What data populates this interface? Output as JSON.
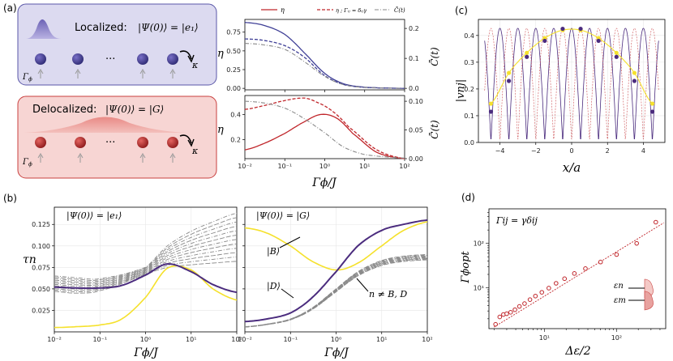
{
  "panel_labels": {
    "a": "(a)",
    "b": "(b)",
    "c": "(c)",
    "d": "(d)"
  },
  "schematic": {
    "localized": {
      "title": "Localized:",
      "state": "|Ψ(0)⟩ = |e₁⟩",
      "dots": "···",
      "gamma": "Γ",
      "gamma_sub": "ϕ",
      "kappa": "κ"
    },
    "delocalized": {
      "title": "Delocalized:",
      "state": "|Ψ(0)⟩ = |G⟩",
      "dots": "···",
      "gamma": "Γ",
      "gamma_sub": "ϕ",
      "kappa": "κ"
    }
  },
  "colors": {
    "purple": "#4b2c7e",
    "navy": "#3f3f96",
    "red": "#c0262b",
    "gray": "#8a8a8a",
    "yellow": "#f5e12c",
    "pink": "#f4c9c6",
    "lavender": "#d9d7ee"
  },
  "chart_data": [
    {
      "id": "a-top",
      "type": "line",
      "legend": [
        "η",
        "η ; Γᵢⱼ = δᵢⱼγ",
        "C̄(t)"
      ],
      "ylabel": "η",
      "y2label": "C̄(t)",
      "yticks": [
        "0.00",
        "0.25",
        "0.50",
        "0.75"
      ],
      "y2ticks": [
        "0.0",
        "0.1",
        "0.2"
      ],
      "xlim": [
        0.01,
        100
      ],
      "ylim": [
        -0.02,
        0.92
      ],
      "y2lim": [
        -0.005,
        0.23
      ],
      "series": [
        {
          "name": "η",
          "x": [
            0.01,
            0.03,
            0.1,
            0.3,
            1,
            3,
            10,
            100
          ],
          "y": [
            0.88,
            0.84,
            0.72,
            0.48,
            0.2,
            0.06,
            0.015,
            0.0
          ]
        },
        {
          "name": "η ; Γᵢⱼ = δᵢⱼγ",
          "x": [
            0.01,
            0.03,
            0.1,
            0.3,
            1,
            3,
            10,
            100
          ],
          "y": [
            0.66,
            0.64,
            0.57,
            0.42,
            0.17,
            0.05,
            0.012,
            0.0
          ]
        },
        {
          "name": "C̄(t)",
          "x": [
            0.01,
            0.03,
            0.1,
            0.3,
            1,
            3,
            10,
            100
          ],
          "y": [
            0.15,
            0.145,
            0.13,
            0.09,
            0.04,
            0.012,
            0.003,
            0.0
          ]
        }
      ]
    },
    {
      "id": "a-bottom",
      "type": "line",
      "xlabel": "Γϕ/J",
      "ylabel": "η",
      "y2label": "C̄(t)",
      "yticks": [
        "0.2",
        "0.4"
      ],
      "y2ticks": [
        "0.00",
        "0.05",
        "0.10"
      ],
      "xticks": [
        "10⁻²",
        "10⁻¹",
        "10⁰",
        "10¹",
        "10²"
      ],
      "xlim": [
        0.01,
        100
      ],
      "ylim": [
        0.05,
        0.55
      ],
      "y2lim": [
        0,
        0.11
      ],
      "series": [
        {
          "name": "η",
          "x": [
            0.01,
            0.03,
            0.1,
            0.3,
            0.8,
            2,
            5,
            20,
            100
          ],
          "y": [
            0.12,
            0.17,
            0.25,
            0.34,
            0.4,
            0.37,
            0.25,
            0.1,
            0.05
          ]
        },
        {
          "name": "η ; Γᵢⱼ = δᵢⱼγ",
          "x": [
            0.01,
            0.03,
            0.1,
            0.3,
            0.6,
            1.5,
            4,
            20,
            100
          ],
          "y": [
            0.44,
            0.47,
            0.51,
            0.53,
            0.5,
            0.43,
            0.3,
            0.12,
            0.05
          ]
        },
        {
          "name": "C̄(t)",
          "x": [
            0.01,
            0.03,
            0.1,
            0.3,
            1,
            3,
            10,
            100
          ],
          "y": [
            0.1,
            0.097,
            0.088,
            0.07,
            0.045,
            0.02,
            0.007,
            0.001
          ]
        }
      ]
    },
    {
      "id": "b-left",
      "type": "line",
      "annotation": "|Ψ(0)⟩ = |e₁⟩",
      "ylabel": "τn",
      "xlabel": "Γϕ/J",
      "yticks": [
        "0.025",
        "0.050",
        "0.075",
        "0.100",
        "0.125"
      ],
      "xticks": [
        "10⁻²",
        "10⁻¹",
        "10⁰",
        "10¹",
        "10²"
      ],
      "xlim": [
        0.01,
        100
      ],
      "ylim": [
        0.0,
        0.145
      ],
      "series": [
        {
          "name": "purple",
          "x": [
            0.01,
            0.03,
            0.1,
            0.3,
            1,
            3,
            10,
            30,
            100
          ],
          "y": [
            0.052,
            0.051,
            0.051,
            0.054,
            0.066,
            0.079,
            0.07,
            0.055,
            0.046
          ]
        },
        {
          "name": "yellow",
          "x": [
            0.01,
            0.03,
            0.1,
            0.3,
            1,
            3,
            10,
            30,
            100
          ],
          "y": [
            0.005,
            0.006,
            0.008,
            0.015,
            0.04,
            0.074,
            0.072,
            0.05,
            0.037
          ]
        },
        {
          "name": "gray-high",
          "x": [
            0.01,
            0.03,
            0.1,
            1,
            3,
            10,
            30,
            100
          ],
          "y": [
            0.065,
            0.063,
            0.062,
            0.075,
            0.1,
            0.117,
            0.128,
            0.138
          ]
        },
        {
          "name": "gray-low",
          "x": [
            0.01,
            0.03,
            0.1,
            1,
            3,
            10,
            30,
            100
          ],
          "y": [
            0.047,
            0.045,
            0.048,
            0.066,
            0.075,
            0.078,
            0.08,
            0.082
          ]
        }
      ]
    },
    {
      "id": "b-right",
      "type": "line",
      "annotation": "|Ψ(0)⟩ = |G⟩",
      "labels": [
        "|B⟩",
        "|D⟩",
        "n ≠ B, D"
      ],
      "xlabel": "Γϕ/J",
      "xticks": [
        "10⁻²",
        "10⁻¹",
        "10⁰",
        "10¹",
        "10²"
      ],
      "xlim": [
        0.01,
        100
      ],
      "ylim": [
        0.0,
        0.145
      ],
      "series": [
        {
          "name": "|B⟩ (yellow)",
          "x": [
            0.01,
            0.03,
            0.1,
            0.3,
            1,
            3,
            10,
            30,
            100
          ],
          "y": [
            0.121,
            0.115,
            0.1,
            0.082,
            0.072,
            0.08,
            0.1,
            0.118,
            0.128
          ]
        },
        {
          "name": "|D⟩ (purple)",
          "x": [
            0.01,
            0.03,
            0.1,
            0.3,
            1,
            3,
            10,
            30,
            100
          ],
          "y": [
            0.012,
            0.015,
            0.022,
            0.04,
            0.07,
            0.1,
            0.118,
            0.125,
            0.13
          ]
        },
        {
          "name": "n ≠ B, D (gray)",
          "x": [
            0.01,
            0.03,
            0.1,
            0.3,
            1,
            3,
            10,
            30,
            100
          ],
          "y": [
            0.006,
            0.009,
            0.015,
            0.028,
            0.05,
            0.07,
            0.083,
            0.088,
            0.09
          ]
        }
      ]
    },
    {
      "id": "c",
      "type": "line",
      "ylabel": "|vnj|",
      "xlabel": "x/a",
      "yticks": [
        "0.0",
        "0.1",
        "0.2",
        "0.3",
        "0.4"
      ],
      "xticks": [
        "−4",
        "−2",
        "0",
        "2",
        "4"
      ],
      "xlim": [
        -5.2,
        5.2
      ],
      "ylim": [
        0,
        0.46
      ],
      "series": [
        {
          "name": "purple points",
          "x": [
            -4.5,
            -3.5,
            -2.5,
            -1.5,
            -0.5,
            0.5,
            1.5,
            2.5,
            3.5,
            4.5
          ],
          "y": [
            0.115,
            0.23,
            0.32,
            0.38,
            0.425,
            0.425,
            0.38,
            0.32,
            0.23,
            0.115
          ]
        },
        {
          "name": "yellow points",
          "x": [
            -4.5,
            -3.5,
            -2.5,
            -1.5,
            -0.5,
            0.5,
            1.5,
            2.5,
            3.5,
            4.5
          ],
          "y": [
            0.145,
            0.26,
            0.335,
            0.39,
            0.42,
            0.42,
            0.39,
            0.335,
            0.26,
            0.145
          ]
        }
      ]
    },
    {
      "id": "d",
      "type": "scatter",
      "annotation": "Γij = γδij",
      "ylabel": "Γϕopt",
      "xlabel": "Δε/2",
      "labels": [
        "εn",
        "εm"
      ],
      "yticks": [
        "10¹",
        "10²"
      ],
      "xticks": [
        "10¹",
        "10²"
      ],
      "xlim": [
        1.7,
        480
      ],
      "ylim": [
        1.2,
        600
      ],
      "series": [
        {
          "name": "points",
          "x": [
            2.1,
            2.4,
            2.7,
            3.0,
            3.4,
            3.9,
            4.5,
            5.3,
            6.3,
            7.5,
            9.2,
            11.5,
            14.5,
            19,
            26,
            37,
            60,
            100,
            190,
            350
          ],
          "y": [
            1.5,
            2.2,
            2.5,
            2.6,
            2.8,
            3.2,
            3.8,
            4.4,
            5.4,
            6.5,
            7.9,
            9.8,
            12.6,
            16,
            21,
            27,
            38,
            56,
            100,
            300
          ]
        }
      ]
    }
  ]
}
